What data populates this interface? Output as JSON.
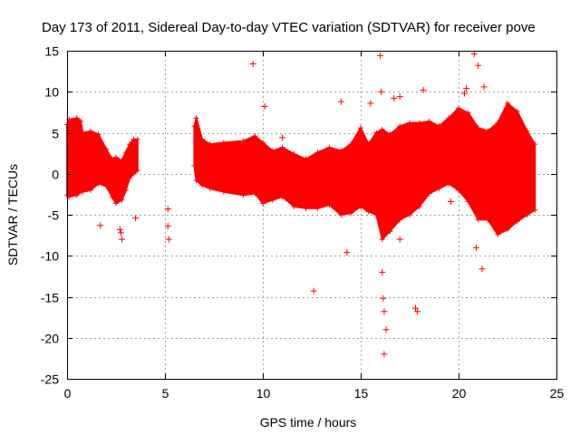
{
  "chart_data": {
    "type": "scatter",
    "title": "Day 173 of 2011, Sidereal Day-to-day VTEC variation (SDTVAR) for receiver pove",
    "xlabel": "GPS time / hours",
    "ylabel": "SDTVAR / TECUs",
    "xlim": [
      0,
      25
    ],
    "ylim": [
      -25,
      15
    ],
    "xticks": [
      0,
      5,
      10,
      15,
      20,
      25
    ],
    "yticks": [
      -25,
      -20,
      -15,
      -10,
      -5,
      0,
      5,
      10,
      15
    ],
    "grid": true,
    "marker": "+",
    "series": [
      {
        "name": "SDTVAR",
        "color": "#ff0000",
        "envelope": [
          {
            "x": 0.0,
            "lo": -2.6,
            "hi": 6.0
          },
          {
            "x": 0.1,
            "lo": -2.8,
            "hi": 6.6
          },
          {
            "x": 0.5,
            "lo": -2.6,
            "hi": 6.8
          },
          {
            "x": 0.7,
            "lo": -2.2,
            "hi": 6.4
          },
          {
            "x": 0.8,
            "lo": -2.2,
            "hi": 5.0
          },
          {
            "x": 1.2,
            "lo": -2.0,
            "hi": 5.2
          },
          {
            "x": 1.6,
            "lo": -1.2,
            "hi": 4.8
          },
          {
            "x": 2.0,
            "lo": -1.5,
            "hi": 3.0
          },
          {
            "x": 2.3,
            "lo": -2.8,
            "hi": 1.8
          },
          {
            "x": 2.5,
            "lo": -3.6,
            "hi": 2.0
          },
          {
            "x": 2.8,
            "lo": -3.2,
            "hi": 1.6
          },
          {
            "x": 3.0,
            "lo": -2.0,
            "hi": 2.6
          },
          {
            "x": 3.2,
            "lo": -0.5,
            "hi": 3.6
          },
          {
            "x": 3.4,
            "lo": 0.0,
            "hi": 4.2
          },
          {
            "x": 3.6,
            "lo": 0.4,
            "hi": 4.2
          },
          {
            "x": 6.5,
            "lo": 1.0,
            "hi": 5.8
          },
          {
            "x": 6.6,
            "lo": -0.8,
            "hi": 6.8
          },
          {
            "x": 6.9,
            "lo": -1.4,
            "hi": 4.2
          },
          {
            "x": 7.3,
            "lo": -1.8,
            "hi": 3.6
          },
          {
            "x": 8.0,
            "lo": -2.2,
            "hi": 3.8
          },
          {
            "x": 9.0,
            "lo": -2.6,
            "hi": 4.0
          },
          {
            "x": 9.6,
            "lo": -2.4,
            "hi": 4.6
          },
          {
            "x": 10.0,
            "lo": -3.6,
            "hi": 3.8
          },
          {
            "x": 10.5,
            "lo": -3.2,
            "hi": 2.8
          },
          {
            "x": 11.0,
            "lo": -2.8,
            "hi": 3.2
          },
          {
            "x": 11.6,
            "lo": -4.0,
            "hi": 2.4
          },
          {
            "x": 12.2,
            "lo": -4.2,
            "hi": 1.8
          },
          {
            "x": 12.8,
            "lo": -4.2,
            "hi": 2.6
          },
          {
            "x": 13.4,
            "lo": -3.8,
            "hi": 3.2
          },
          {
            "x": 14.0,
            "lo": -5.0,
            "hi": 2.8
          },
          {
            "x": 14.5,
            "lo": -4.8,
            "hi": 3.6
          },
          {
            "x": 15.0,
            "lo": -4.0,
            "hi": 5.6
          },
          {
            "x": 15.4,
            "lo": -4.6,
            "hi": 3.6
          },
          {
            "x": 15.8,
            "lo": -5.0,
            "hi": 5.0
          },
          {
            "x": 16.1,
            "lo": -8.0,
            "hi": 5.4
          },
          {
            "x": 16.5,
            "lo": -7.0,
            "hi": 4.8
          },
          {
            "x": 17.0,
            "lo": -5.6,
            "hi": 5.8
          },
          {
            "x": 17.5,
            "lo": -5.0,
            "hi": 6.2
          },
          {
            "x": 18.0,
            "lo": -4.0,
            "hi": 6.2
          },
          {
            "x": 18.5,
            "lo": -2.4,
            "hi": 6.4
          },
          {
            "x": 19.0,
            "lo": -1.8,
            "hi": 5.8
          },
          {
            "x": 19.5,
            "lo": -1.2,
            "hi": 6.8
          },
          {
            "x": 20.0,
            "lo": -2.0,
            "hi": 8.0
          },
          {
            "x": 20.5,
            "lo": -3.4,
            "hi": 7.4
          },
          {
            "x": 21.0,
            "lo": -5.6,
            "hi": 5.6
          },
          {
            "x": 21.5,
            "lo": -5.6,
            "hi": 5.2
          },
          {
            "x": 22.0,
            "lo": -7.4,
            "hi": 6.2
          },
          {
            "x": 22.5,
            "lo": -6.8,
            "hi": 8.6
          },
          {
            "x": 23.0,
            "lo": -5.8,
            "hi": 7.6
          },
          {
            "x": 23.5,
            "lo": -5.0,
            "hi": 5.2
          },
          {
            "x": 23.9,
            "lo": -4.4,
            "hi": 3.6
          }
        ],
        "outliers": [
          {
            "x": 1.7,
            "y": -6.3
          },
          {
            "x": 2.7,
            "y": -6.8
          },
          {
            "x": 2.8,
            "y": -8.0
          },
          {
            "x": 2.75,
            "y": -7.2
          },
          {
            "x": 3.5,
            "y": -5.4
          },
          {
            "x": 5.15,
            "y": -4.3
          },
          {
            "x": 5.15,
            "y": -6.4
          },
          {
            "x": 5.2,
            "y": -8.0
          },
          {
            "x": 9.5,
            "y": 13.4
          },
          {
            "x": 10.1,
            "y": 8.2
          },
          {
            "x": 11.0,
            "y": 4.4
          },
          {
            "x": 12.6,
            "y": -14.3
          },
          {
            "x": 14.0,
            "y": 8.8
          },
          {
            "x": 14.3,
            "y": -9.6
          },
          {
            "x": 15.5,
            "y": 8.6
          },
          {
            "x": 16.0,
            "y": 14.4
          },
          {
            "x": 16.05,
            "y": 10.0
          },
          {
            "x": 16.1,
            "y": -12.0
          },
          {
            "x": 16.15,
            "y": -15.2
          },
          {
            "x": 16.2,
            "y": -16.8
          },
          {
            "x": 16.3,
            "y": -19.0
          },
          {
            "x": 16.2,
            "y": -22.0
          },
          {
            "x": 16.7,
            "y": 9.2
          },
          {
            "x": 17.0,
            "y": 9.4
          },
          {
            "x": 17.0,
            "y": -8.0
          },
          {
            "x": 17.8,
            "y": -16.4
          },
          {
            "x": 17.9,
            "y": -16.8
          },
          {
            "x": 18.2,
            "y": 10.2
          },
          {
            "x": 19.6,
            "y": -3.4
          },
          {
            "x": 20.3,
            "y": 9.8
          },
          {
            "x": 20.4,
            "y": 10.4
          },
          {
            "x": 20.8,
            "y": 14.6
          },
          {
            "x": 21.0,
            "y": 13.2
          },
          {
            "x": 21.3,
            "y": 10.6
          },
          {
            "x": 20.9,
            "y": -9.0
          },
          {
            "x": 21.2,
            "y": -11.6
          }
        ]
      }
    ]
  }
}
